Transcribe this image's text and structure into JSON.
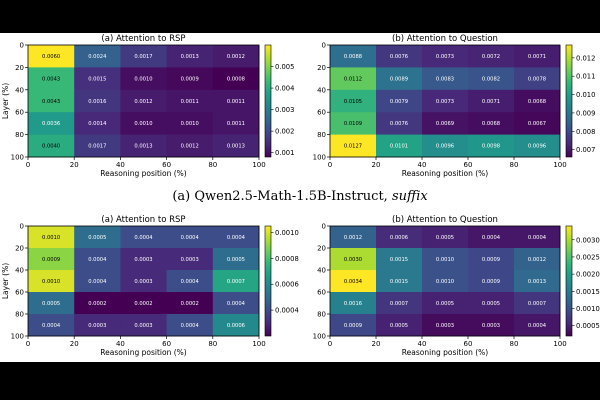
{
  "caption": {
    "model": "(a) Qwen2.5-Math-1.5B-Instruct,",
    "variant": "suffix"
  },
  "colors": {
    "viridis": [
      "#440154",
      "#482878",
      "#3e4989",
      "#31688e",
      "#26828e",
      "#1f9e89",
      "#35b779",
      "#6ece58",
      "#b5de2b",
      "#fde725"
    ],
    "page_background": "#ffffff",
    "letterbox": "#000000"
  },
  "chart_data": [
    {
      "type": "heatmap",
      "id": "top-left",
      "title": "(a) Attention to RSP",
      "xlabel": "Reasoning position (%)",
      "ylabel": "Layer (%)",
      "x_ticks": [
        "0",
        "20",
        "40",
        "60",
        "80",
        "100"
      ],
      "y_ticks": [
        "0",
        "20",
        "40",
        "60",
        "80",
        "100"
      ],
      "values": [
        [
          "0.0060",
          "0.0024",
          "0.0017",
          "0.0013",
          "0.0012"
        ],
        [
          "0.0043",
          "0.0015",
          "0.0010",
          "0.0009",
          "0.0008"
        ],
        [
          "0.0043",
          "0.0016",
          "0.0012",
          "0.0011",
          "0.0011"
        ],
        [
          "0.0036",
          "0.0014",
          "0.0010",
          "0.0010",
          "0.0011"
        ],
        [
          "0.0040",
          "0.0017",
          "0.0013",
          "0.0012",
          "0.0013"
        ]
      ],
      "colorbar": {
        "min": 0.0008,
        "max": 0.006,
        "ticks": [
          "0.001",
          "0.002",
          "0.003",
          "0.004",
          "0.005"
        ]
      }
    },
    {
      "type": "heatmap",
      "id": "top-right",
      "title": "(b) Attention to Question",
      "xlabel": "Reasoning position (%)",
      "ylabel": "",
      "x_ticks": [
        "0",
        "20",
        "40",
        "60",
        "80",
        "100"
      ],
      "y_ticks": [
        "0",
        "20",
        "40",
        "60",
        "80",
        "100"
      ],
      "values": [
        [
          "0.0088",
          "0.0076",
          "0.0073",
          "0.0072",
          "0.0071"
        ],
        [
          "0.0112",
          "0.0089",
          "0.0083",
          "0.0082",
          "0.0078"
        ],
        [
          "0.0105",
          "0.0079",
          "0.0073",
          "0.0071",
          "0.0068"
        ],
        [
          "0.0109",
          "0.0076",
          "0.0069",
          "0.0068",
          "0.0067"
        ],
        [
          "0.0127",
          "0.0101",
          "0.0096",
          "0.0098",
          "0.0096"
        ]
      ],
      "colorbar": {
        "min": 0.0066,
        "max": 0.0127,
        "ticks": [
          "0.007",
          "0.008",
          "0.009",
          "0.010",
          "0.011",
          "0.012"
        ]
      }
    },
    {
      "type": "heatmap",
      "id": "bottom-left",
      "title": "(a) Attention to RSP",
      "xlabel": "Reasoning position (%)",
      "ylabel": "Layer (%)",
      "x_ticks": [
        "0",
        "20",
        "40",
        "60",
        "80",
        "100"
      ],
      "y_ticks": [
        "0",
        "20",
        "40",
        "60",
        "80",
        "100"
      ],
      "values": [
        [
          "0.0010",
          "0.0005",
          "0.0004",
          "0.0004",
          "0.0004"
        ],
        [
          "0.0009",
          "0.0004",
          "0.0003",
          "0.0003",
          "0.0005"
        ],
        [
          "0.0010",
          "0.0004",
          "0.0003",
          "0.0004",
          "0.0007"
        ],
        [
          "0.0005",
          "0.0002",
          "0.0002",
          "0.0002",
          "0.0004"
        ],
        [
          "0.0004",
          "0.0003",
          "0.0003",
          "0.0004",
          "0.0006"
        ]
      ],
      "colorbar": {
        "min": 0.0002,
        "max": 0.00105,
        "ticks": [
          "0.0004",
          "0.0006",
          "0.0008",
          "0.0010"
        ]
      }
    },
    {
      "type": "heatmap",
      "id": "bottom-right",
      "title": "(b) Attention to Question",
      "xlabel": "Reasoning position (%)",
      "ylabel": "",
      "x_ticks": [
        "0",
        "20",
        "40",
        "60",
        "80",
        "100"
      ],
      "y_ticks": [
        "0",
        "20",
        "40",
        "60",
        "80",
        "100"
      ],
      "values": [
        [
          "0.0012",
          "0.0006",
          "0.0005",
          "0.0004",
          "0.0004"
        ],
        [
          "0.0030",
          "0.0015",
          "0.0010",
          "0.0009",
          "0.0012"
        ],
        [
          "0.0034",
          "0.0015",
          "0.0010",
          "0.0009",
          "0.0013"
        ],
        [
          "0.0016",
          "0.0007",
          "0.0005",
          "0.0005",
          "0.0007"
        ],
        [
          "0.0009",
          "0.0005",
          "0.0003",
          "0.0003",
          "0.0004"
        ]
      ],
      "colorbar": {
        "min": 0.0002,
        "max": 0.0034,
        "ticks": [
          "0.0005",
          "0.0010",
          "0.0015",
          "0.0020",
          "0.0025",
          "0.0030"
        ]
      }
    }
  ]
}
